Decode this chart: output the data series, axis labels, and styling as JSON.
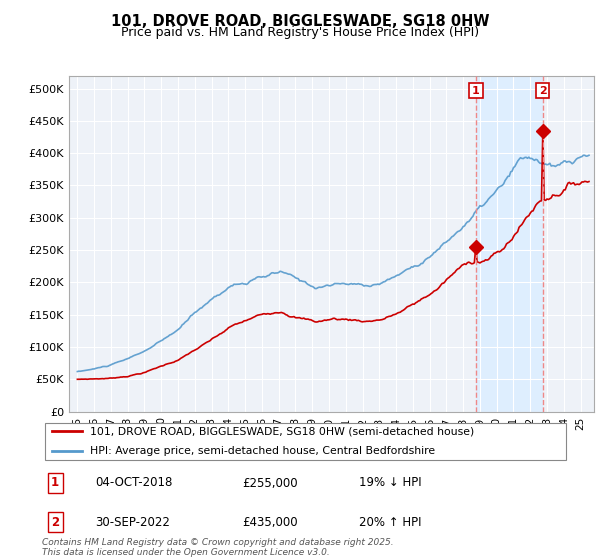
{
  "title": "101, DROVE ROAD, BIGGLESWADE, SG18 0HW",
  "subtitle": "Price paid vs. HM Land Registry's House Price Index (HPI)",
  "legend_line1": "101, DROVE ROAD, BIGGLESWADE, SG18 0HW (semi-detached house)",
  "legend_line2": "HPI: Average price, semi-detached house, Central Bedfordshire",
  "annotation1_date": "04-OCT-2018",
  "annotation1_price": "£255,000",
  "annotation1_hpi": "19% ↓ HPI",
  "annotation2_date": "30-SEP-2022",
  "annotation2_price": "£435,000",
  "annotation2_hpi": "20% ↑ HPI",
  "footer": "Contains HM Land Registry data © Crown copyright and database right 2025.\nThis data is licensed under the Open Government Licence v3.0.",
  "price_color": "#cc0000",
  "hpi_color": "#5599cc",
  "highlight_color": "#ddeeff",
  "annotation_vline_color": "#ee8888",
  "ylim": [
    0,
    520000
  ],
  "yticks": [
    0,
    50000,
    100000,
    150000,
    200000,
    250000,
    300000,
    350000,
    400000,
    450000,
    500000
  ],
  "sale1_x": 2018.76,
  "sale1_price": 255000,
  "sale2_x": 2022.75,
  "sale2_price": 435000,
  "xlim_left": 1994.5,
  "xlim_right": 2025.8
}
